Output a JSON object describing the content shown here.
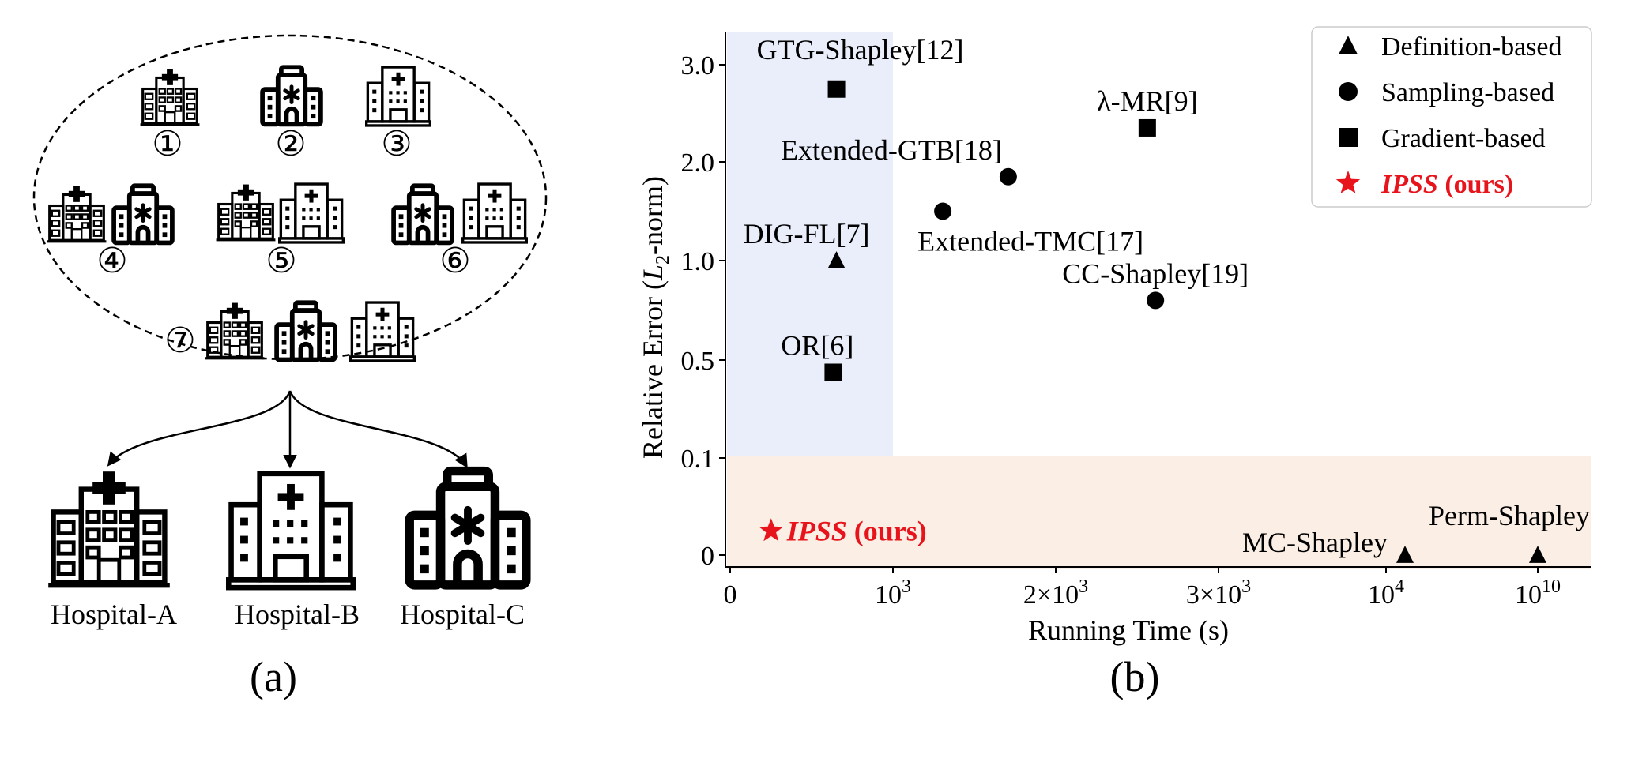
{
  "panel_a": {
    "caption": "(a)",
    "coalition_numbers": [
      "①",
      "②",
      "③",
      "④",
      "⑤",
      "⑥",
      "⑦"
    ],
    "hospital_labels": [
      "Hospital-A",
      "Hospital-B",
      "Hospital-C"
    ]
  },
  "panel_b": {
    "caption": "(b)"
  },
  "chart_data": {
    "type": "scatter",
    "xlabel": "Running Time (s)",
    "ylabel": "Relative Error (L2-norm)",
    "ylabel_parts": [
      "Relative Error (",
      "L",
      "2",
      "-norm)"
    ],
    "x_ticks": [
      "0",
      "10^3",
      "2×10^3",
      "3×10^3",
      "10^4",
      "10^10"
    ],
    "x_ticks_display": [
      {
        "base": "0",
        "exp": ""
      },
      {
        "base": "10",
        "exp": "3"
      },
      {
        "base": "2×10",
        "exp": "3"
      },
      {
        "base": "3×10",
        "exp": "3"
      },
      {
        "base": "10",
        "exp": "4"
      },
      {
        "base": "10",
        "exp": "10"
      }
    ],
    "y_ticks": [
      "0",
      "0.1",
      "0.5",
      "1.0",
      "2.0",
      "3.0"
    ],
    "x_scale": "broken (linear 0–3×10^3, then 10^4, 10^10)",
    "y_scale": "broken (0, 0.1, 0.5, 1.0, 2.0, 3.0 equally spaced)",
    "legend_position": "top-right",
    "legend": [
      {
        "marker": "triangle",
        "label": "Definition-based",
        "color": "#000000"
      },
      {
        "marker": "circle",
        "label": "Sampling-based",
        "color": "#000000"
      },
      {
        "marker": "square",
        "label": "Gradient-based",
        "color": "#000000"
      },
      {
        "marker": "star",
        "label_italic": "IPSS",
        "label_rest": " (ours)",
        "color": "#e8141b"
      }
    ],
    "regions": [
      {
        "x": [
          0,
          1000
        ],
        "y": [
          0,
          3.3
        ],
        "color": "#e9eefa"
      },
      {
        "x": [
          0,
          "10^10"
        ],
        "y": [
          0,
          0.1
        ],
        "color": "#fbeee4"
      }
    ],
    "points": [
      {
        "method": "GTG-Shapley[12]",
        "category": "Gradient-based",
        "marker": "square",
        "x": 650,
        "y": 2.75
      },
      {
        "method": "λ-MR[9]",
        "category": "Gradient-based",
        "marker": "square",
        "x": 2550,
        "y": 2.35
      },
      {
        "method": "Extended-GTB[18]",
        "category": "Sampling-based",
        "marker": "circle",
        "x": 1700,
        "y": 1.85
      },
      {
        "method": "Extended-TMC[17]",
        "category": "Sampling-based",
        "marker": "circle",
        "x": 1300,
        "y": 1.5
      },
      {
        "method": "DIG-FL[7]",
        "category": "Definition-based",
        "marker": "triangle",
        "x": 650,
        "y": 1.0
      },
      {
        "method": "CC-Shapley[19]",
        "category": "Sampling-based",
        "marker": "circle",
        "x": 2600,
        "y": 0.8
      },
      {
        "method": "OR[6]",
        "category": "Gradient-based",
        "marker": "square",
        "x": 630,
        "y": 0.45
      },
      {
        "method": "MC-Shapley",
        "category": "Definition-based",
        "marker": "triangle",
        "x": "~1.1×10^4",
        "y": 0
      },
      {
        "method": "Perm-Shapley",
        "category": "Definition-based",
        "marker": "triangle",
        "x": "~10^10",
        "y": 0
      },
      {
        "method_italic": "IPSS",
        "method_rest": " (ours)",
        "category": "IPSS (ours)",
        "marker": "star",
        "x": 250,
        "y": 0.025,
        "color": "#e8141b"
      }
    ]
  }
}
